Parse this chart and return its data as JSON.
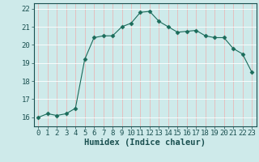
{
  "x": [
    0,
    1,
    2,
    3,
    4,
    5,
    6,
    7,
    8,
    9,
    10,
    11,
    12,
    13,
    14,
    15,
    16,
    17,
    18,
    19,
    20,
    21,
    22,
    23
  ],
  "y": [
    16.0,
    16.2,
    16.1,
    16.2,
    16.5,
    19.2,
    20.4,
    20.5,
    20.5,
    21.0,
    21.2,
    21.8,
    21.85,
    21.3,
    21.0,
    20.7,
    20.75,
    20.8,
    20.5,
    20.4,
    20.4,
    19.8,
    19.5,
    18.5
  ],
  "line_color": "#1a6b5a",
  "marker": "D",
  "marker_size": 2.5,
  "background_color": "#ceeaea",
  "grid_color": "#ffffff",
  "xlabel": "Humidex (Indice chaleur)",
  "xlim": [
    -0.5,
    23.5
  ],
  "ylim": [
    15.5,
    22.3
  ],
  "yticks": [
    16,
    17,
    18,
    19,
    20,
    21,
    22
  ],
  "xticks": [
    0,
    1,
    2,
    3,
    4,
    5,
    6,
    7,
    8,
    9,
    10,
    11,
    12,
    13,
    14,
    15,
    16,
    17,
    18,
    19,
    20,
    21,
    22,
    23
  ],
  "xtick_labels": [
    "0",
    "1",
    "2",
    "3",
    "4",
    "5",
    "6",
    "7",
    "8",
    "9",
    "10",
    "11",
    "12",
    "13",
    "14",
    "15",
    "16",
    "17",
    "18",
    "19",
    "20",
    "21",
    "22",
    "23"
  ],
  "xlabel_fontsize": 7.5,
  "tick_fontsize": 6.5,
  "grid_line_color": "#b8d8d8"
}
